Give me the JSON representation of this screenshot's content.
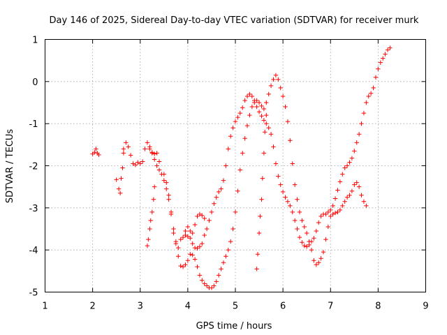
{
  "chart_data": {
    "type": "scatter",
    "title": "Day 146 of 2025, Sidereal Day-to-day VTEC variation (SDTVAR) for receiver murk",
    "xlabel": "GPS time / hours",
    "ylabel": "SDTVAR / TECUs",
    "xlim": [
      1,
      9
    ],
    "ylim": [
      -5,
      1
    ],
    "xticks": [
      "1",
      "2",
      "3",
      "4",
      "5",
      "6",
      "7",
      "8",
      "9"
    ],
    "yticks": [
      "-5",
      "-4",
      "-3",
      "-2",
      "-1",
      "0",
      "1"
    ],
    "grid": true,
    "marker": "+",
    "color": "#ff0000",
    "series": [
      {
        "name": "segment-1",
        "x": [
          2.0,
          2.04,
          2.07,
          2.1,
          2.13
        ],
        "y": [
          -1.72,
          -1.68,
          -1.6,
          -1.7,
          -1.74
        ]
      },
      {
        "name": "segment-2",
        "x": [
          2.5,
          2.55,
          2.58,
          2.6,
          2.63,
          2.65
        ],
        "y": [
          -2.33,
          -2.55,
          -2.65,
          -2.3,
          -2.05,
          -1.7
        ]
      },
      {
        "name": "main-trace",
        "x": [
          2.65,
          2.7,
          2.75,
          2.8,
          2.85,
          2.9,
          2.95,
          3.0,
          3.05,
          3.1,
          3.15,
          3.2,
          3.25,
          3.3,
          3.35,
          3.4,
          3.5,
          3.55,
          3.6,
          3.65,
          3.7,
          3.75,
          3.8,
          3.85,
          3.9,
          3.95,
          4.0,
          4.05,
          4.1,
          4.15,
          4.2,
          4.25,
          4.3,
          4.35,
          4.4,
          4.45,
          4.5,
          4.55,
          4.6,
          4.65,
          4.7,
          4.75,
          4.8,
          4.85,
          4.9,
          4.95,
          5.0,
          5.05,
          5.1,
          5.15,
          5.2,
          5.25,
          5.3,
          5.35,
          5.4,
          5.45,
          5.5,
          5.55,
          5.6,
          5.65,
          5.7,
          5.75,
          5.8,
          5.85,
          5.9,
          5.95,
          6.0,
          6.05,
          6.1,
          6.15,
          6.2,
          6.25,
          6.3,
          6.35,
          6.4,
          6.45,
          6.5,
          6.55,
          6.6,
          6.65,
          6.7,
          6.75,
          6.8,
          6.85,
          6.9,
          6.95,
          7.0,
          7.05,
          7.1,
          7.15,
          7.2,
          7.25,
          7.3,
          7.35,
          7.4,
          7.45,
          7.5,
          7.55,
          7.6,
          7.65,
          7.7,
          7.75,
          7.8,
          7.85,
          7.9,
          7.95,
          8.0,
          8.05,
          8.1,
          8.15,
          8.2,
          8.25
        ],
        "y": [
          -1.6,
          -1.45,
          -1.55,
          -1.75,
          -1.95,
          -1.98,
          -1.92,
          -1.95,
          -1.9,
          -1.6,
          -1.45,
          -1.6,
          -1.68,
          -1.72,
          -1.7,
          -1.9,
          -2.2,
          -2.4,
          -2.7,
          -3.1,
          -3.6,
          -3.85,
          -3.95,
          -3.75,
          -3.7,
          -3.65,
          -3.68,
          -3.72,
          -3.85,
          -3.95,
          -3.96,
          -3.92,
          -3.85,
          -3.65,
          -3.5,
          -3.3,
          -3.1,
          -2.9,
          -2.75,
          -2.62,
          -2.55,
          -2.35,
          -2.0,
          -1.6,
          -1.3,
          -1.1,
          -0.95,
          -0.85,
          -0.75,
          -0.62,
          -0.45,
          -0.35,
          -0.3,
          -0.35,
          -0.45,
          -0.6,
          -0.72,
          -0.82,
          -0.92,
          -1.0,
          -1.1,
          -1.25,
          -1.55,
          -1.95,
          -2.25,
          -2.45,
          -2.62,
          -2.75,
          -2.85,
          -2.95,
          -3.1,
          -3.3,
          -3.5,
          -3.7,
          -3.82,
          -3.9,
          -3.92,
          -3.88,
          -3.8,
          -3.72,
          -3.55,
          -3.35,
          -3.2,
          -3.15,
          -3.15,
          -3.1,
          -3.05,
          -2.95,
          -2.78,
          -2.58,
          -2.38,
          -2.2,
          -2.05,
          -2.0,
          -1.92,
          -1.82,
          -1.65,
          -1.45,
          -1.25,
          -1.0,
          -0.75,
          -0.5,
          -0.35,
          -0.28,
          -0.15,
          0.1,
          0.3,
          0.45,
          0.55,
          0.65,
          0.75,
          0.8
        ]
      },
      {
        "name": "lower-trace",
        "x": [
          3.2,
          3.25,
          3.3,
          3.35,
          3.4,
          3.45,
          3.5,
          3.55,
          3.6,
          3.65,
          3.7,
          3.75,
          3.8,
          3.85,
          3.9,
          3.95,
          4.0,
          4.05,
          4.1,
          4.15,
          4.2,
          4.25,
          4.3,
          4.35,
          4.4,
          4.45,
          4.5,
          4.55,
          4.6,
          4.65,
          4.7,
          4.75,
          4.8,
          4.85,
          4.9,
          4.95,
          5.0,
          5.05,
          5.1,
          5.15,
          5.2,
          5.25,
          5.3,
          5.35,
          5.4,
          5.45,
          5.5,
          5.55,
          5.6,
          5.65,
          5.7,
          5.75,
          5.8,
          5.85,
          5.9,
          5.95,
          6.0,
          6.05,
          6.1,
          6.15,
          6.2,
          6.25,
          6.3,
          6.35,
          6.4,
          6.45,
          6.5,
          6.55,
          6.6,
          6.65,
          6.7,
          6.75,
          6.8,
          6.85,
          6.9,
          6.95,
          7.0,
          7.05,
          7.1,
          7.15,
          7.2,
          7.25,
          7.3,
          7.35,
          7.4,
          7.45,
          7.5,
          7.55,
          7.6,
          7.65,
          7.7,
          7.75
        ],
        "y": [
          -1.55,
          -1.7,
          -1.85,
          -2.0,
          -2.1,
          -2.2,
          -2.35,
          -2.55,
          -2.8,
          -3.15,
          -3.5,
          -3.8,
          -4.15,
          -4.38,
          -4.4,
          -4.35,
          -4.25,
          -4.1,
          -4.12,
          -4.22,
          -4.4,
          -4.6,
          -4.72,
          -4.8,
          -4.85,
          -4.9,
          -4.9,
          -4.85,
          -4.75,
          -4.6,
          -4.45,
          -4.3,
          -4.15,
          -4.0,
          -3.8,
          -3.5,
          -3.1,
          -2.6,
          -2.1,
          -1.7,
          -1.35,
          -1.05,
          -0.8,
          -0.6,
          -0.5,
          -0.45,
          -0.5,
          -0.58,
          -0.65,
          -0.5,
          -0.3,
          -0.1,
          0.05,
          0.15,
          0.05,
          -0.15,
          -0.35,
          -0.6,
          -0.95,
          -1.4,
          -1.95,
          -2.45,
          -2.8,
          -3.1,
          -3.3,
          -3.45,
          -3.6,
          -3.8,
          -4.0,
          -4.25,
          -4.35,
          -4.3,
          -4.2,
          -4.05,
          -3.75,
          -3.45,
          -3.2,
          -3.15,
          -3.12,
          -3.1,
          -3.05,
          -2.95,
          -2.85,
          -2.75,
          -2.7,
          -2.6,
          -2.45,
          -2.4,
          -2.5,
          -2.7,
          -2.85,
          -2.95
        ]
      },
      {
        "name": "dip-a",
        "x": [
          3.15,
          3.17,
          3.2,
          3.22,
          3.25,
          3.28,
          3.3
        ],
        "y": [
          -3.9,
          -3.75,
          -3.5,
          -3.3,
          -3.1,
          -2.8,
          -2.5
        ]
      },
      {
        "name": "dip-b",
        "x": [
          5.45,
          5.47,
          5.5,
          5.52,
          5.55,
          5.57,
          5.6,
          5.62,
          5.65
        ],
        "y": [
          -4.45,
          -4.1,
          -3.6,
          -3.2,
          -2.8,
          -2.3,
          -1.7,
          -1.2,
          -0.8
        ]
      },
      {
        "name": "upper-bump",
        "x": [
          3.95,
          4.0,
          4.05,
          4.1,
          4.15,
          4.2,
          4.25,
          4.3,
          4.35
        ],
        "y": [
          -3.55,
          -3.45,
          -3.55,
          -3.6,
          -3.4,
          -3.2,
          -3.15,
          -3.18,
          -3.25
        ]
      }
    ]
  }
}
